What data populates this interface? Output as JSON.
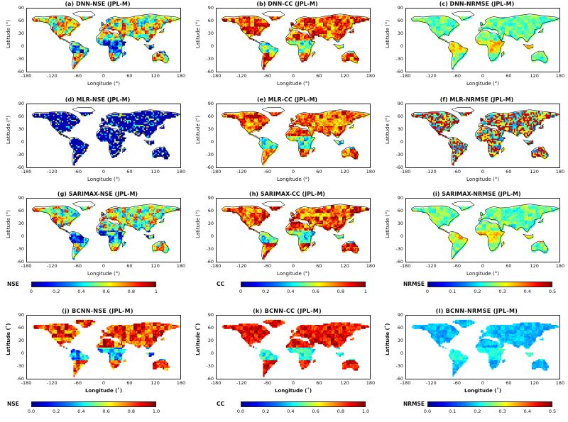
{
  "panels": [
    {
      "title": "(a) DNN-NSE (JPL-M)",
      "scheme": "nse",
      "style": "mpl"
    },
    {
      "title": "(b) DNN-CC (JPL-M)",
      "scheme": "cc",
      "style": "mpl"
    },
    {
      "title": "(c) DNN-NRMSE (JPL-M)",
      "scheme": "nrmse",
      "style": "mpl"
    },
    {
      "title": "(d) MLR-NSE (JPL-M)",
      "scheme": "mlrnse",
      "style": "mpl"
    },
    {
      "title": "(e) MLR-CC (JPL-M)",
      "scheme": "cc",
      "style": "mpl"
    },
    {
      "title": "(f) MLR-NRMSE (JPL-M)",
      "scheme": "mlrnrmse",
      "style": "mpl"
    },
    {
      "title": "(g) SARIMAX-NSE (JPL-M)",
      "scheme": "nse",
      "style": "mpl"
    },
    {
      "title": "(h) SARIMAX-CC (JPL-M)",
      "scheme": "cc",
      "style": "mpl"
    },
    {
      "title": "(i) SARIMAX-NRMSE (JPL-M)",
      "scheme": "nrmse",
      "style": "mpl"
    },
    {
      "title": "(j) BCNN-NSE (JPL-M)",
      "scheme": "bnse",
      "style": "bold"
    },
    {
      "title": "(k) BCNN-CC (JPL-M)",
      "scheme": "bcc",
      "style": "bold"
    },
    {
      "title": "(l) BCNN-NRMSE (JPL-M)",
      "scheme": "bnrmse",
      "style": "bold"
    }
  ],
  "axes": {
    "ylabel_mpl": "Latitude (°)",
    "xlabel_mpl": "Longitude (°)",
    "ylabel_bold": "Latitude (˚)",
    "xlabel_bold": "Longitude (˚)",
    "yticks": [
      "90",
      "60",
      "30",
      "0",
      "-30",
      "-60"
    ],
    "xticks": [
      "-180",
      "-120",
      "-60",
      "0",
      "60",
      "120",
      "180"
    ]
  },
  "colorbars": [
    {
      "label": "NSE",
      "ticks": [
        "0",
        "0.2",
        "0.4",
        "0.6",
        "0.8",
        "1"
      ]
    },
    {
      "label": "CC",
      "ticks": [
        "0",
        "0.2",
        "0.4",
        "0.6",
        "0.8",
        "1"
      ]
    },
    {
      "label": "NRMSE",
      "ticks": [
        "0",
        "0.1",
        "0.2",
        "0.3",
        "0.4",
        "0.5"
      ]
    },
    {
      "label": "NSE",
      "ticks": [
        "0.0",
        "0.2",
        "0.4",
        "0.6",
        "0.8",
        "1.0"
      ]
    },
    {
      "label": "CC",
      "ticks": [
        "0.0",
        "0.2",
        "0.4",
        "0.6",
        "0.8",
        "1.0"
      ]
    },
    {
      "label": "NRMSE",
      "ticks": [
        "0.0",
        "0.1",
        "0.2",
        "0.3",
        "0.4",
        "0.5"
      ]
    }
  ],
  "colors": {
    "min": "#00008f",
    "mid": "#80ff80",
    "max": "#800000"
  }
}
